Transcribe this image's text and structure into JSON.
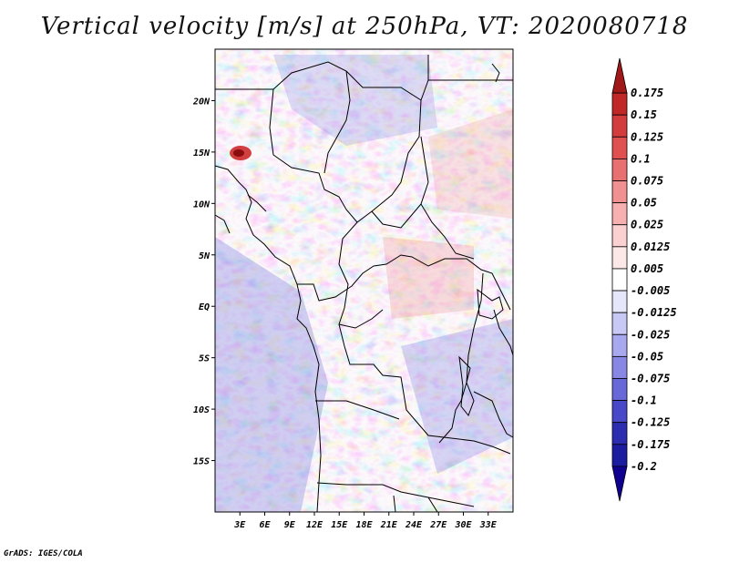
{
  "title": "Vertical velocity [m/s] at 250hPa, VT: 2020080718",
  "footer": "GrADS: IGES/COLA",
  "map": {
    "lon_range": [
      0,
      36
    ],
    "lat_range": [
      -20,
      25
    ],
    "lat_ticks": [
      "20N",
      "15N",
      "10N",
      "5N",
      "EQ",
      "5S",
      "10S",
      "15S"
    ],
    "lon_ticks": [
      "3E",
      "6E",
      "9E",
      "12E",
      "15E",
      "18E",
      "21E",
      "24E",
      "27E",
      "30E",
      "33E"
    ]
  },
  "colorbar": {
    "labels": [
      "0.175",
      "0.15",
      "0.125",
      "0.1",
      "0.075",
      "0.05",
      "0.025",
      "0.0125",
      "0.005",
      "-0.005",
      "-0.0125",
      "-0.025",
      "-0.05",
      "-0.075",
      "-0.1",
      "-0.125",
      "-0.175",
      "-0.2"
    ],
    "colors": [
      "#a01818",
      "#c02828",
      "#d23c3c",
      "#e05050",
      "#e87070",
      "#f09090",
      "#f6b0b0",
      "#fad0d0",
      "#fde8e8",
      "#ffffff",
      "#e6e6fb",
      "#c8c8f5",
      "#a8a8ee",
      "#8888e4",
      "#6868d8",
      "#4848c8",
      "#2c2cb0",
      "#1c1ca0",
      "#100090"
    ]
  }
}
